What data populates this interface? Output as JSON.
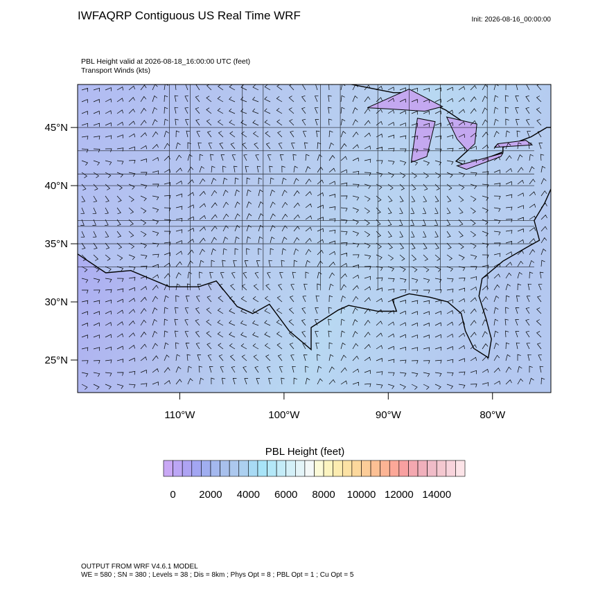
{
  "header": {
    "title": "IWFAQRP Contiguous US Real Time WRF",
    "init": "Init: 2026-08-16_00:00:00"
  },
  "chart_data": {
    "type": "map",
    "subtitle_lines": [
      "PBL Height valid at 2026-08-18_16:00:00 UTC   (feet)",
      "Transport Winds   (kts)"
    ],
    "xlim": [
      -119.8,
      -74.4
    ],
    "ylim": [
      22.2,
      48.7
    ],
    "xticks": [
      {
        "value": -110,
        "label": "110°W"
      },
      {
        "value": -100,
        "label": "100°W"
      },
      {
        "value": -90,
        "label": "90°W"
      },
      {
        "value": -80,
        "label": "80°W"
      }
    ],
    "yticks": [
      {
        "value": 25,
        "label": "25°N"
      },
      {
        "value": 30,
        "label": "30°N"
      },
      {
        "value": 35,
        "label": "35°N"
      },
      {
        "value": 40,
        "label": "40°N"
      },
      {
        "value": 45,
        "label": "45°N"
      }
    ],
    "colorbar": {
      "title": "PBL Height  (feet)",
      "lim": [
        -500,
        15500
      ],
      "ticks": [
        0,
        2000,
        4000,
        6000,
        8000,
        10000,
        12000,
        14000
      ],
      "colors": [
        "#c9a8f5",
        "#bca6f5",
        "#aea3f3",
        "#a3a6f2",
        "#a0aef0",
        "#a4b8ee",
        "#a8c0ec",
        "#acc8ee",
        "#acd0f0",
        "#a8daf4",
        "#a8e4f8",
        "#b4e8f8",
        "#c4ecf8",
        "#d4f0f8",
        "#e4f4f8",
        "#f4f8f8",
        "#fcfad8",
        "#fcf4c0",
        "#fcecb0",
        "#fce2a4",
        "#fcd89c",
        "#fccc98",
        "#fcc094",
        "#fcb494",
        "#fca898",
        "#f8a0a0",
        "#f4a8b0",
        "#f0b0bc",
        "#f0bcc8",
        "#f4c8d0",
        "#f8d4dc",
        "#fce4e8"
      ]
    }
  },
  "footer": [
    "OUTPUT FROM WRF V4.6.1 MODEL",
    "WE = 580 ; SN = 380 ; Levels = 38 ; Dis = 8km ; Phys Opt = 8 ; PBL Opt = 1 ; Cu Opt = 5"
  ]
}
